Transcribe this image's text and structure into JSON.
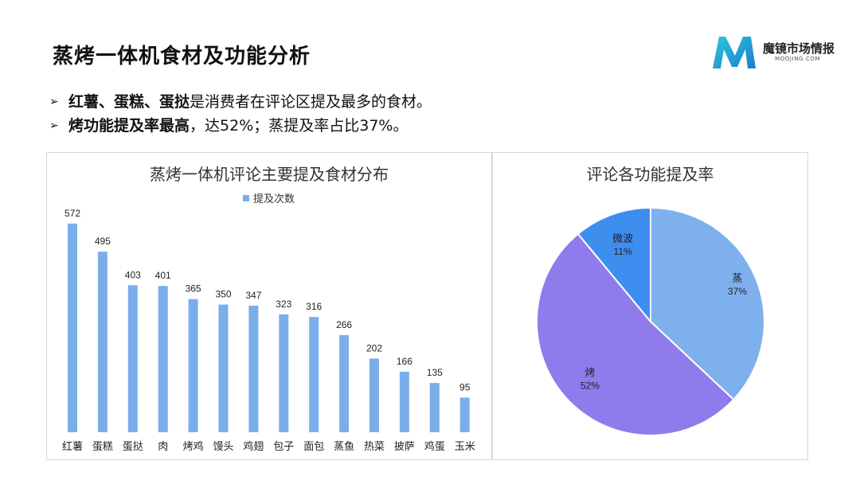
{
  "header": {
    "title": "蒸烤一体机食材及功能分析",
    "logo_name": "魔镜市场情报",
    "logo_sub": "MOOJING.COM"
  },
  "bullets": [
    {
      "bold": "红薯、蛋糕、蛋挞",
      "text": "是消费者在评论区提及最多的食材。"
    },
    {
      "bold": "烤功能提及率最高",
      "text": "，达52%；蒸提及率占比37%。"
    }
  ],
  "colors": {
    "bar": "#7aaeeb",
    "steam": "#7fb0ee",
    "bake": "#8f7beb",
    "microwave": "#3d8eef"
  },
  "chart_data": [
    {
      "type": "bar",
      "title": "蒸烤一体机评论主要提及食材分布",
      "legend": "提及次数",
      "legend_position": "top",
      "categories": [
        "红薯",
        "蛋糕",
        "蛋挞",
        "肉",
        "烤鸡",
        "馒头",
        "鸡翅",
        "包子",
        "面包",
        "蒸鱼",
        "热菜",
        "披萨",
        "鸡蛋",
        "玉米"
      ],
      "series": [
        {
          "name": "提及次数",
          "values": [
            572,
            495,
            403,
            401,
            365,
            350,
            347,
            323,
            316,
            266,
            202,
            166,
            135,
            95
          ]
        }
      ],
      "ylim": [
        0,
        600
      ],
      "grid": false
    },
    {
      "type": "pie",
      "title": "评论各功能提及率",
      "slices": [
        {
          "label": "蒸",
          "value": 37,
          "value_label": "37%"
        },
        {
          "label": "烤",
          "value": 52,
          "value_label": "52%"
        },
        {
          "label": "微波",
          "value": 11,
          "value_label": "11%"
        }
      ]
    }
  ]
}
